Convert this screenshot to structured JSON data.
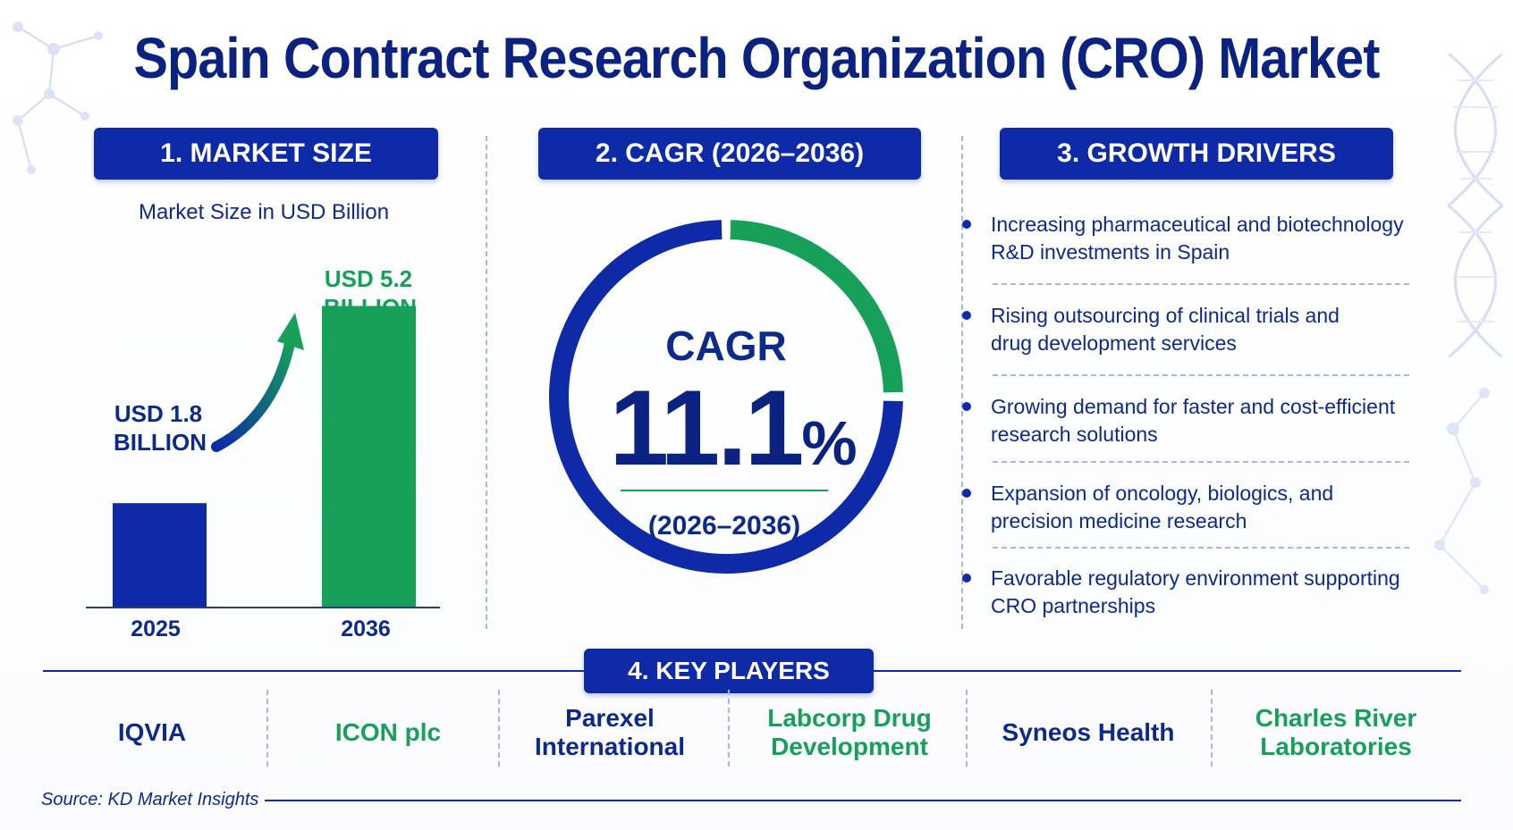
{
  "title": "Spain Contract Research Organization (CRO) Market",
  "sections": {
    "market_size": "1. MARKET SIZE",
    "cagr": "2. CAGR (2026–2036)",
    "growth_drivers": "3. GROWTH DRIVERS",
    "key_players": "4. KEY PLAYERS"
  },
  "colors": {
    "primary_blue": "#0e2aa6",
    "accent_green": "#16a05a",
    "text_navy": "#0d2a8a"
  },
  "chart_data": [
    {
      "type": "bar",
      "title": "",
      "subtitle": "Market Size in USD Billion",
      "categories": [
        "2025",
        "2036"
      ],
      "values": [
        1.8,
        5.2
      ],
      "data_labels": [
        "USD 1.8 BILLION",
        "USD 5.2 BILLION"
      ],
      "bar_colors": [
        "#0e2aa6",
        "#16a05a"
      ],
      "ylim": [
        0,
        5.7
      ],
      "grid": false,
      "xlabel": "",
      "ylabel": ""
    },
    {
      "type": "pie",
      "title": "CAGR",
      "center_value": "11.1",
      "center_unit": "%",
      "center_caption": "(2026–2036)",
      "values": [
        11.1,
        88.9
      ],
      "slice_colors": [
        "#16a05a",
        "#0e2aa6"
      ]
    }
  ],
  "drivers": [
    [
      "Increasing pharmaceutical and biotechnology",
      "R&D investments in Spain"
    ],
    [
      "Rising outsourcing of clinical trials and",
      "drug development services"
    ],
    [
      "Growing demand for faster and cost-efficient",
      "research solutions"
    ],
    [
      "Expansion of oncology, biologics, and",
      "precision medicine research"
    ],
    [
      "Favorable regulatory environment supporting",
      "CRO partnerships"
    ]
  ],
  "players": [
    {
      "lines": [
        "IQVIA"
      ],
      "color": "#0d2a8a"
    },
    {
      "lines": [
        "ICON plc"
      ],
      "color": "#16a05a"
    },
    {
      "lines": [
        "Parexel",
        "International"
      ],
      "color": "#0d2a8a"
    },
    {
      "lines": [
        "Labcorp Drug",
        "Development"
      ],
      "color": "#16a05a"
    },
    {
      "lines": [
        "Syneos Health"
      ],
      "color": "#0d2a8a"
    },
    {
      "lines": [
        "Charles River",
        "Laboratories"
      ],
      "color": "#16a05a"
    }
  ],
  "source": "Source: KD Market Insights",
  "icons": {
    "growth_arrow": "growth-arrow-icon",
    "molecule": "molecule-icon",
    "dna": "dna-icon"
  }
}
